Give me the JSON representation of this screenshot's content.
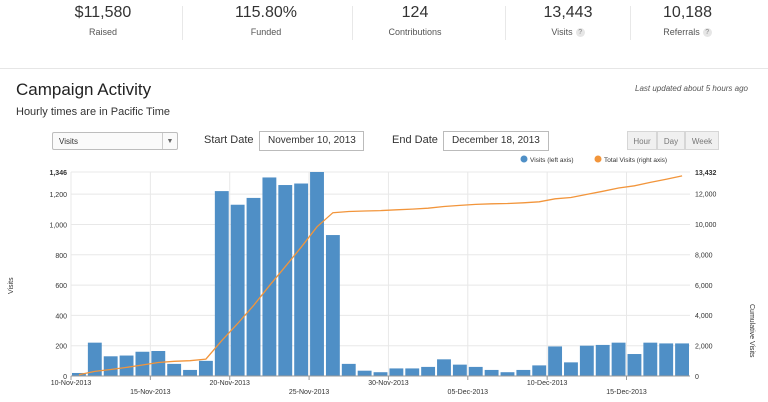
{
  "stats": [
    {
      "value": "$11,580",
      "label": "Raised",
      "help": ""
    },
    {
      "value": "115.80%",
      "label": "Funded",
      "help": ""
    },
    {
      "value": "124",
      "label": "Contributions",
      "help": ""
    },
    {
      "value": "13,443",
      "label": "Visits",
      "help": "?"
    },
    {
      "value": "10,188",
      "label": "Referrals",
      "help": "?"
    }
  ],
  "section": {
    "title": "Campaign Activity",
    "subtitle": "Hourly times are in Pacific Time",
    "updated": "Last updated about 5 hours ago"
  },
  "controls": {
    "metric_select": "Visits",
    "start_label": "Start Date",
    "start_value": "November 10, 2013",
    "end_label": "End Date",
    "end_value": "December 18, 2013",
    "buttons": [
      "Hour",
      "Day",
      "Week"
    ]
  },
  "colors": {
    "bar": "#4f8fc6",
    "bar_stroke": "#ffffff",
    "line": "#f2953b",
    "grid": "#e8e8e8",
    "axis_text": "#333333"
  },
  "chart_data": {
    "type": "bar",
    "x": [
      "10-Nov-2013",
      "11-Nov-2013",
      "12-Nov-2013",
      "13-Nov-2013",
      "14-Nov-2013",
      "15-Nov-2013",
      "16-Nov-2013",
      "17-Nov-2013",
      "18-Nov-2013",
      "19-Nov-2013",
      "20-Nov-2013",
      "21-Nov-2013",
      "22-Nov-2013",
      "23-Nov-2013",
      "24-Nov-2013",
      "25-Nov-2013",
      "26-Nov-2013",
      "27-Nov-2013",
      "28-Nov-2013",
      "29-Nov-2013",
      "30-Nov-2013",
      "01-Dec-2013",
      "02-Dec-2013",
      "03-Dec-2013",
      "04-Dec-2013",
      "05-Dec-2013",
      "06-Dec-2013",
      "07-Dec-2013",
      "08-Dec-2013",
      "09-Dec-2013",
      "10-Dec-2013",
      "11-Dec-2013",
      "12-Dec-2013",
      "13-Dec-2013",
      "14-Dec-2013",
      "15-Dec-2013",
      "16-Dec-2013",
      "17-Dec-2013",
      "18-Dec-2013"
    ],
    "x_tick_labels": [
      "10-Nov-2013",
      "15-Nov-2013",
      "20-Nov-2013",
      "25-Nov-2013",
      "30-Nov-2013",
      "05-Dec-2013",
      "10-Dec-2013",
      "15-Dec-2013"
    ],
    "x_tick_indices": [
      0,
      5,
      10,
      15,
      20,
      25,
      30,
      35
    ],
    "series": [
      {
        "name": "Visits (left axis)",
        "type": "bar",
        "axis": "left",
        "values": [
          20,
          220,
          130,
          135,
          160,
          165,
          80,
          40,
          100,
          1220,
          1130,
          1175,
          1310,
          1260,
          1270,
          1346,
          930,
          80,
          35,
          25,
          50,
          50,
          60,
          110,
          75,
          60,
          40,
          25,
          40,
          70,
          195,
          90,
          200,
          205,
          220,
          145,
          220,
          215,
          215
        ]
      },
      {
        "name": "Total Visits (right axis)",
        "type": "line",
        "axis": "right",
        "values": [
          80,
          300,
          430,
          565,
          725,
          890,
          970,
          1010,
          1110,
          2330,
          3460,
          4635,
          5945,
          7205,
          8475,
          9821,
          10751,
          10831,
          10866,
          10891,
          10941,
          10991,
          11051,
          11161,
          11236,
          11296,
          11336,
          11361,
          11401,
          11471,
          11666,
          11756,
          11956,
          12161,
          12381,
          12526,
          12746,
          12961,
          13176
        ]
      }
    ],
    "y_left": {
      "label": "Visits",
      "ticks": [
        "0",
        "200",
        "400",
        "600",
        "800",
        "1,000",
        "1,200",
        "1,346"
      ],
      "tick_values": [
        0,
        200,
        400,
        600,
        800,
        1000,
        1200,
        1346
      ],
      "max": 1346
    },
    "y_right": {
      "label": "Cumulative Visits",
      "ticks": [
        "0",
        "2,000",
        "4,000",
        "6,000",
        "8,000",
        "10,000",
        "12,000",
        "13,432"
      ],
      "tick_values": [
        0,
        2000,
        4000,
        6000,
        8000,
        10000,
        12000,
        13432
      ],
      "max": 13432
    },
    "legend": [
      "Visits (left axis)",
      "Total Visits (right axis)"
    ],
    "legend_position": "top-right",
    "grid": true
  }
}
